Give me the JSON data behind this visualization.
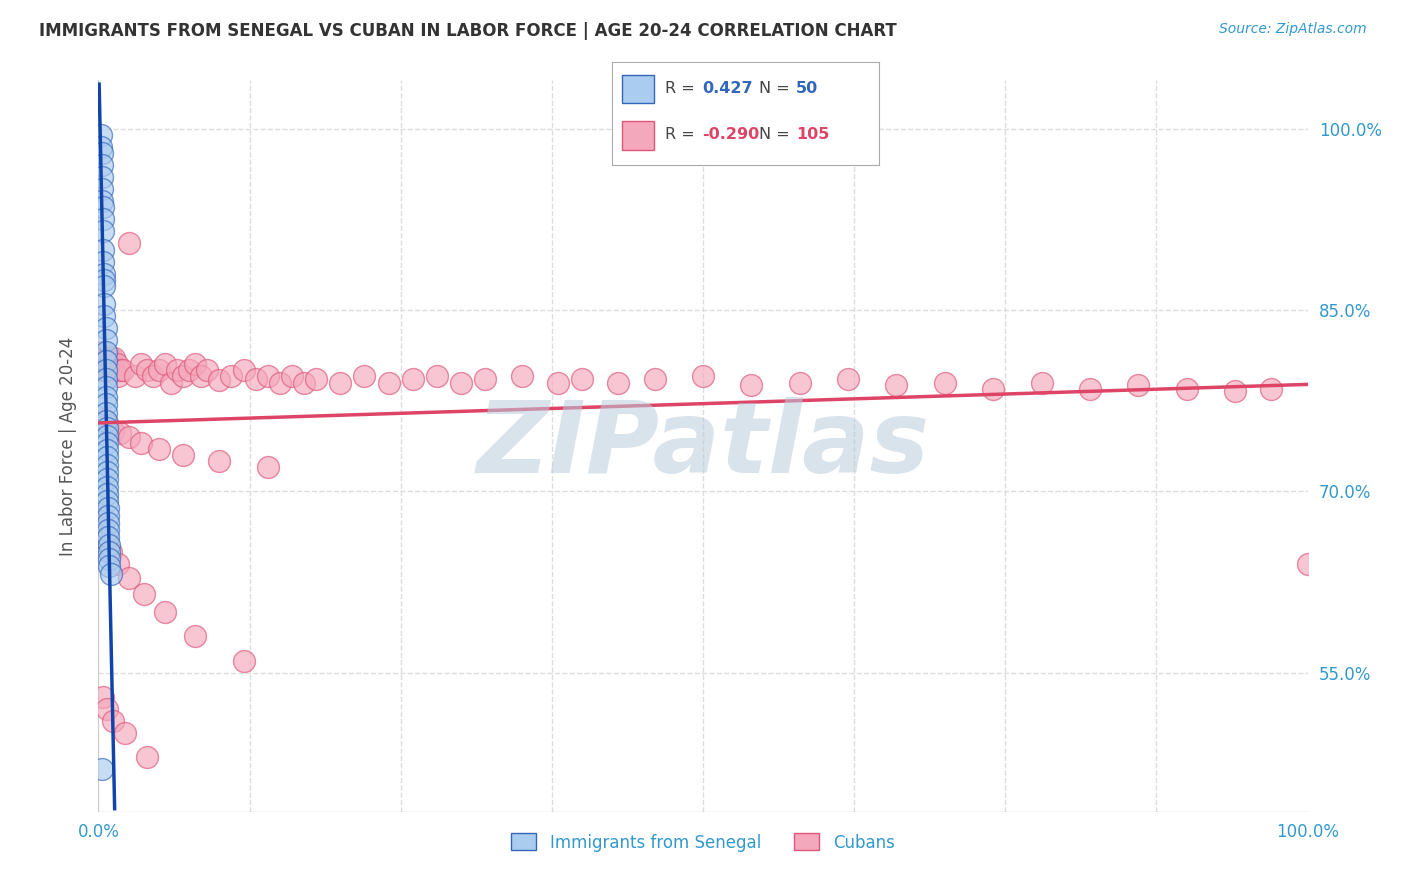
{
  "title": "IMMIGRANTS FROM SENEGAL VS CUBAN IN LABOR FORCE | AGE 20-24 CORRELATION CHART",
  "source": "Source: ZipAtlas.com",
  "ylabel": "In Labor Force | Age 20-24",
  "y_ticks_right": [
    "55.0%",
    "70.0%",
    "85.0%",
    "100.0%"
  ],
  "y_ticks_right_vals": [
    0.55,
    0.7,
    0.85,
    1.0
  ],
  "xlim": [
    0.0,
    1.0
  ],
  "ylim": [
    0.435,
    1.04
  ],
  "senegal_R": "0.427",
  "senegal_N": "50",
  "cuban_R": "-0.290",
  "cuban_N": "105",
  "legend_label_senegal": "Immigrants from Senegal",
  "legend_label_cuban": "Cubans",
  "color_senegal_fill": "#AACCEE",
  "color_cuban_fill": "#F4A8BB",
  "color_senegal_edge": "#3366BB",
  "color_cuban_edge": "#DD5577",
  "color_senegal_line": "#1144AA",
  "color_cuban_line": "#DD4466",
  "background_color": "#FFFFFF",
  "grid_color": "#DDDDDD",
  "watermark_text": "ZIPatlas",
  "watermark_color": "#BBCCDD",
  "title_color": "#333333",
  "axis_tick_color": "#3399CC",
  "legend_R_color_senegal": "#3366BB",
  "legend_R_color_cuban": "#DD4466",
  "senegal_x": [
    0.002,
    0.002,
    0.003,
    0.003,
    0.003,
    0.003,
    0.003,
    0.004,
    0.004,
    0.004,
    0.004,
    0.004,
    0.005,
    0.005,
    0.005,
    0.005,
    0.005,
    0.006,
    0.006,
    0.006,
    0.006,
    0.006,
    0.006,
    0.006,
    0.006,
    0.006,
    0.006,
    0.006,
    0.007,
    0.007,
    0.007,
    0.007,
    0.007,
    0.007,
    0.007,
    0.007,
    0.007,
    0.007,
    0.007,
    0.008,
    0.008,
    0.008,
    0.008,
    0.008,
    0.009,
    0.009,
    0.009,
    0.009,
    0.01,
    0.003
  ],
  "senegal_y": [
    0.995,
    0.985,
    0.98,
    0.97,
    0.96,
    0.95,
    0.94,
    0.935,
    0.925,
    0.915,
    0.9,
    0.89,
    0.88,
    0.875,
    0.87,
    0.855,
    0.845,
    0.835,
    0.825,
    0.815,
    0.808,
    0.8,
    0.793,
    0.786,
    0.778,
    0.772,
    0.765,
    0.758,
    0.752,
    0.746,
    0.74,
    0.734,
    0.728,
    0.722,
    0.716,
    0.71,
    0.704,
    0.698,
    0.692,
    0.686,
    0.68,
    0.674,
    0.668,
    0.662,
    0.656,
    0.65,
    0.644,
    0.638,
    0.632,
    0.47
  ],
  "cuban_x": [
    0.002,
    0.003,
    0.003,
    0.003,
    0.003,
    0.004,
    0.004,
    0.004,
    0.004,
    0.005,
    0.005,
    0.005,
    0.005,
    0.006,
    0.006,
    0.006,
    0.007,
    0.007,
    0.007,
    0.008,
    0.008,
    0.009,
    0.01,
    0.01,
    0.011,
    0.012,
    0.013,
    0.015,
    0.016,
    0.018,
    0.02,
    0.025,
    0.03,
    0.035,
    0.04,
    0.045,
    0.05,
    0.055,
    0.06,
    0.065,
    0.07,
    0.075,
    0.08,
    0.085,
    0.09,
    0.1,
    0.11,
    0.12,
    0.13,
    0.14,
    0.15,
    0.16,
    0.17,
    0.18,
    0.2,
    0.22,
    0.24,
    0.26,
    0.28,
    0.3,
    0.32,
    0.35,
    0.38,
    0.4,
    0.43,
    0.46,
    0.5,
    0.54,
    0.58,
    0.62,
    0.66,
    0.7,
    0.74,
    0.78,
    0.82,
    0.86,
    0.9,
    0.94,
    0.97,
    1.0,
    0.005,
    0.008,
    0.012,
    0.018,
    0.025,
    0.035,
    0.05,
    0.07,
    0.1,
    0.14,
    0.003,
    0.004,
    0.006,
    0.01,
    0.016,
    0.025,
    0.038,
    0.055,
    0.08,
    0.12,
    0.004,
    0.007,
    0.012,
    0.022,
    0.04
  ],
  "cuban_y": [
    0.8,
    0.805,
    0.81,
    0.8,
    0.808,
    0.815,
    0.805,
    0.81,
    0.8,
    0.808,
    0.812,
    0.8,
    0.805,
    0.808,
    0.8,
    0.805,
    0.81,
    0.8,
    0.805,
    0.81,
    0.8,
    0.805,
    0.8,
    0.81,
    0.805,
    0.8,
    0.81,
    0.805,
    0.795,
    0.8,
    0.8,
    0.905,
    0.795,
    0.805,
    0.8,
    0.795,
    0.8,
    0.805,
    0.79,
    0.8,
    0.795,
    0.8,
    0.805,
    0.795,
    0.8,
    0.792,
    0.795,
    0.8,
    0.793,
    0.795,
    0.79,
    0.795,
    0.79,
    0.793,
    0.79,
    0.795,
    0.79,
    0.793,
    0.795,
    0.79,
    0.793,
    0.795,
    0.79,
    0.793,
    0.79,
    0.793,
    0.795,
    0.788,
    0.79,
    0.793,
    0.788,
    0.79,
    0.785,
    0.79,
    0.785,
    0.788,
    0.785,
    0.783,
    0.785,
    0.64,
    0.76,
    0.755,
    0.75,
    0.748,
    0.745,
    0.74,
    0.735,
    0.73,
    0.725,
    0.72,
    0.68,
    0.672,
    0.66,
    0.65,
    0.64,
    0.628,
    0.615,
    0.6,
    0.58,
    0.56,
    0.53,
    0.52,
    0.51,
    0.5,
    0.48
  ]
}
